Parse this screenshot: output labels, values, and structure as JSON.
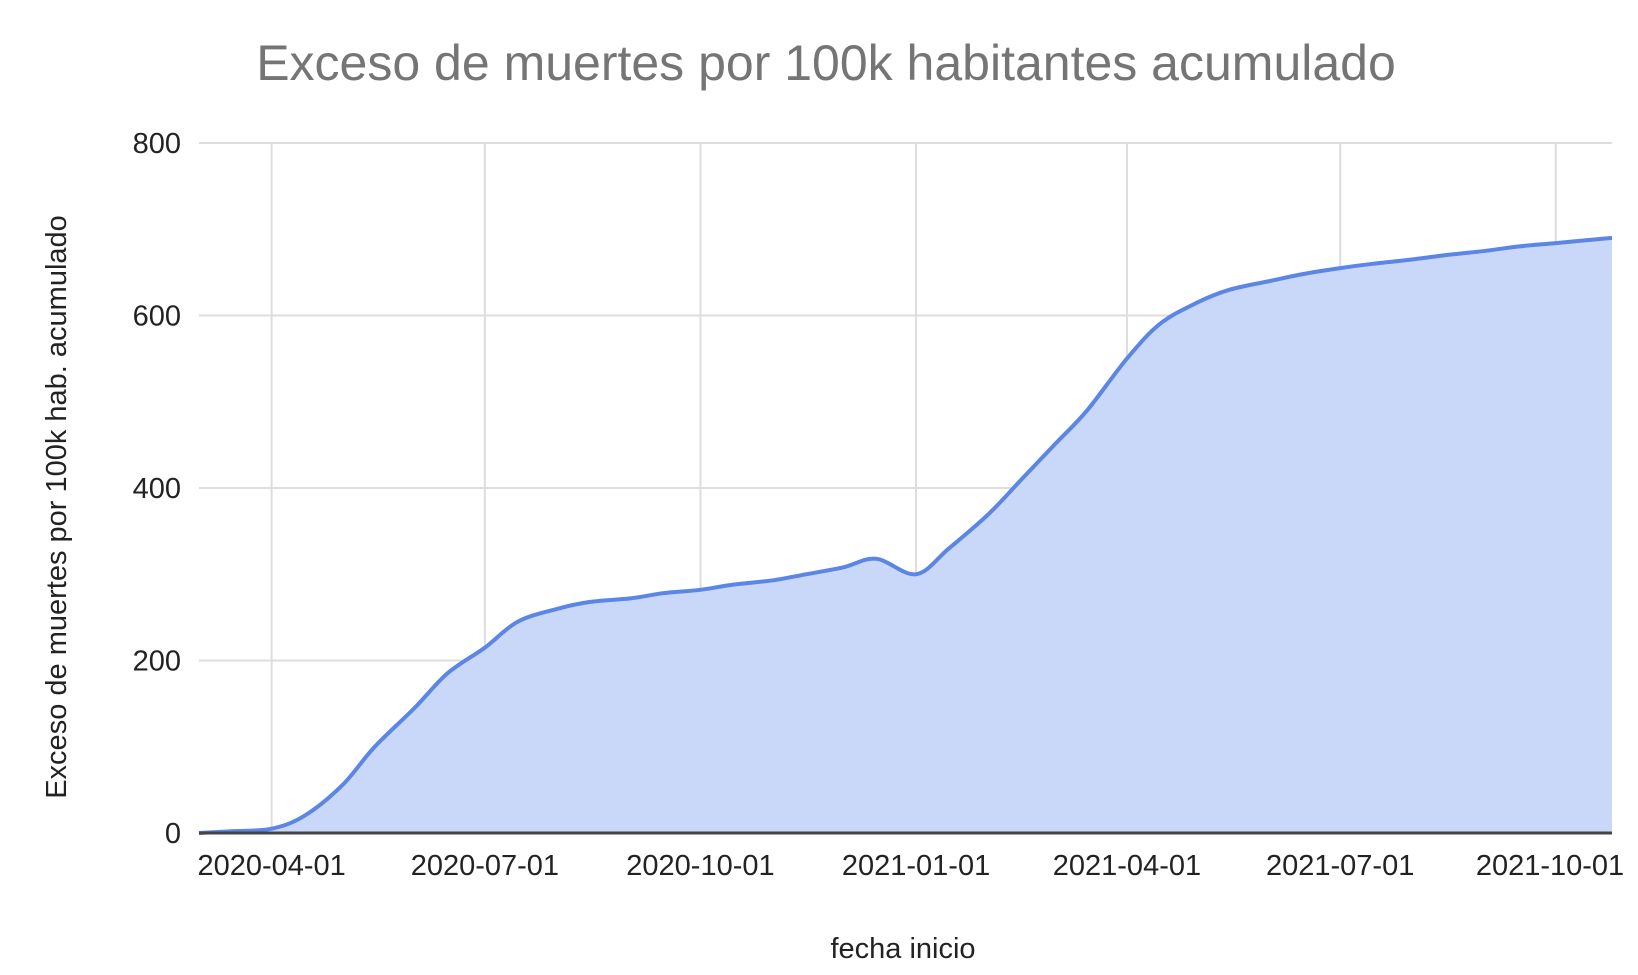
{
  "chart_data": {
    "type": "area",
    "title": "Exceso de muertes por 100k habitantes acumulado",
    "xlabel": "fecha inicio",
    "ylabel": "Exceso de muertes por 100k hab. acumulado",
    "xlim": [
      "2020-03-01",
      "2021-10-25"
    ],
    "ylim": [
      0,
      800
    ],
    "y_ticks": [
      0,
      200,
      400,
      600,
      800
    ],
    "x_ticks": [
      "2020-04-01",
      "2020-07-01",
      "2020-10-01",
      "2021-01-01",
      "2021-04-01",
      "2021-07-01",
      "2021-10-01"
    ],
    "grid": true,
    "legend": "none",
    "colors": {
      "line": "#5b86e5",
      "fill": "#c9d8f8",
      "grid": "#dddddd",
      "axis": "#444444",
      "title": "#757575"
    },
    "series": [
      {
        "x": [
          "2020-03-01",
          "2020-03-15",
          "2020-04-01",
          "2020-04-15",
          "2020-05-01",
          "2020-05-15",
          "2020-06-01",
          "2020-06-15",
          "2020-07-01",
          "2020-07-15",
          "2020-08-01",
          "2020-08-15",
          "2020-09-01",
          "2020-09-15",
          "2020-10-01",
          "2020-10-15",
          "2020-11-01",
          "2020-11-15",
          "2020-12-01",
          "2020-12-15",
          "2021-01-01",
          "2021-01-15",
          "2021-02-01",
          "2021-02-15",
          "2021-03-01",
          "2021-03-15",
          "2021-04-01",
          "2021-04-15",
          "2021-05-01",
          "2021-05-15",
          "2021-06-01",
          "2021-06-15",
          "2021-07-01",
          "2021-07-15",
          "2021-08-01",
          "2021-08-15",
          "2021-09-01",
          "2021-09-15",
          "2021-10-01",
          "2021-10-25"
        ],
        "values": [
          0,
          2,
          5,
          20,
          55,
          100,
          145,
          185,
          215,
          245,
          260,
          268,
          272,
          278,
          282,
          288,
          293,
          300,
          308,
          318,
          300,
          330,
          370,
          410,
          450,
          490,
          550,
          590,
          615,
          630,
          640,
          648,
          655,
          660,
          665,
          670,
          675,
          680,
          684,
          690
        ]
      }
    ]
  }
}
